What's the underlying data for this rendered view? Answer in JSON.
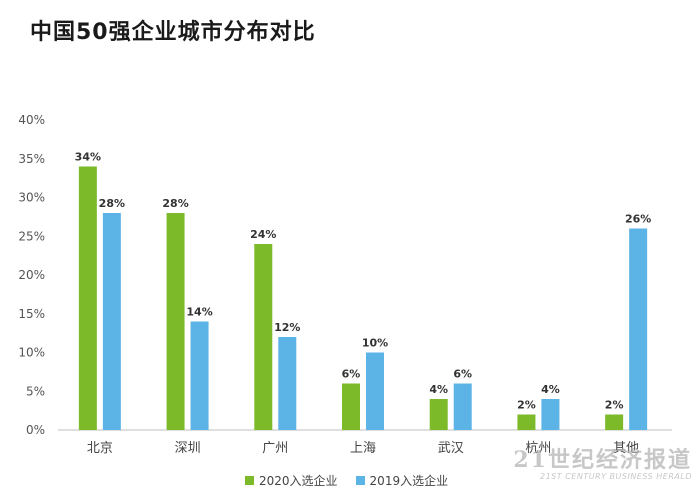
{
  "chart_data": {
    "type": "bar",
    "title": "中国50强企业城市分布对比",
    "categories": [
      "北京",
      "深圳",
      "广州",
      "上海",
      "武汉",
      "杭州",
      "其他"
    ],
    "series": [
      {
        "name": "2020入选企业",
        "values": [
          34,
          28,
          24,
          6,
          4,
          2,
          2
        ],
        "labels": [
          "34%",
          "28%",
          "24%",
          "6%",
          "4%",
          "2%",
          "2%"
        ],
        "color": "#7dba2a"
      },
      {
        "name": "2019入选企业",
        "values": [
          28,
          14,
          12,
          10,
          6,
          4,
          26
        ],
        "labels": [
          "28%",
          "14%",
          "12%",
          "10%",
          "6%",
          "4%",
          "26%"
        ],
        "color": "#5cb3e6"
      }
    ],
    "yticks": [
      "0%",
      "5%",
      "10%",
      "15%",
      "20%",
      "25%",
      "30%",
      "35%",
      "40%"
    ],
    "ylim": [
      0,
      40
    ],
    "grid": false,
    "legend_position": "bottom"
  },
  "watermark": {
    "main": "21世纪经济报道",
    "sub": "21ST CENTURY BUSINESS HERALD"
  }
}
